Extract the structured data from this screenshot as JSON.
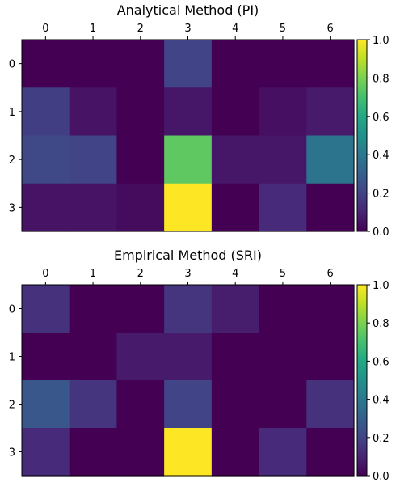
{
  "chart_data": [
    {
      "type": "heatmap",
      "title": "Analytical Method (PI)",
      "x_ticks": [
        "0",
        "1",
        "2",
        "3",
        "4",
        "5",
        "6"
      ],
      "y_ticks": [
        "0",
        "1",
        "2",
        "3"
      ],
      "colormap": "viridis",
      "clim": [
        0.0,
        1.0
      ],
      "colorbar_ticks": [
        "0.0",
        "0.2",
        "0.4",
        "0.6",
        "0.8",
        "1.0"
      ],
      "values": [
        [
          0.0,
          0.0,
          0.0,
          0.2,
          0.0,
          0.0,
          0.0
        ],
        [
          0.18,
          0.05,
          0.0,
          0.06,
          0.0,
          0.04,
          0.07
        ],
        [
          0.22,
          0.2,
          0.0,
          0.75,
          0.06,
          0.06,
          0.38
        ],
        [
          0.05,
          0.05,
          0.03,
          1.0,
          0.0,
          0.12,
          0.0
        ]
      ]
    },
    {
      "type": "heatmap",
      "title": "Empirical Method (SRI)",
      "x_ticks": [
        "0",
        "1",
        "2",
        "3",
        "4",
        "5",
        "6"
      ],
      "y_ticks": [
        "0",
        "1",
        "2",
        "3"
      ],
      "colormap": "viridis",
      "clim": [
        0.0,
        1.0
      ],
      "colorbar_ticks": [
        "0.0",
        "0.2",
        "0.4",
        "0.6",
        "0.8",
        "1.0"
      ],
      "values": [
        [
          0.14,
          0.0,
          0.0,
          0.15,
          0.08,
          0.0,
          0.0
        ],
        [
          0.0,
          0.0,
          0.07,
          0.07,
          0.0,
          0.0,
          0.0
        ],
        [
          0.27,
          0.15,
          0.0,
          0.2,
          0.0,
          0.0,
          0.14
        ],
        [
          0.12,
          0.0,
          0.0,
          1.0,
          0.0,
          0.12,
          0.0
        ]
      ]
    }
  ]
}
